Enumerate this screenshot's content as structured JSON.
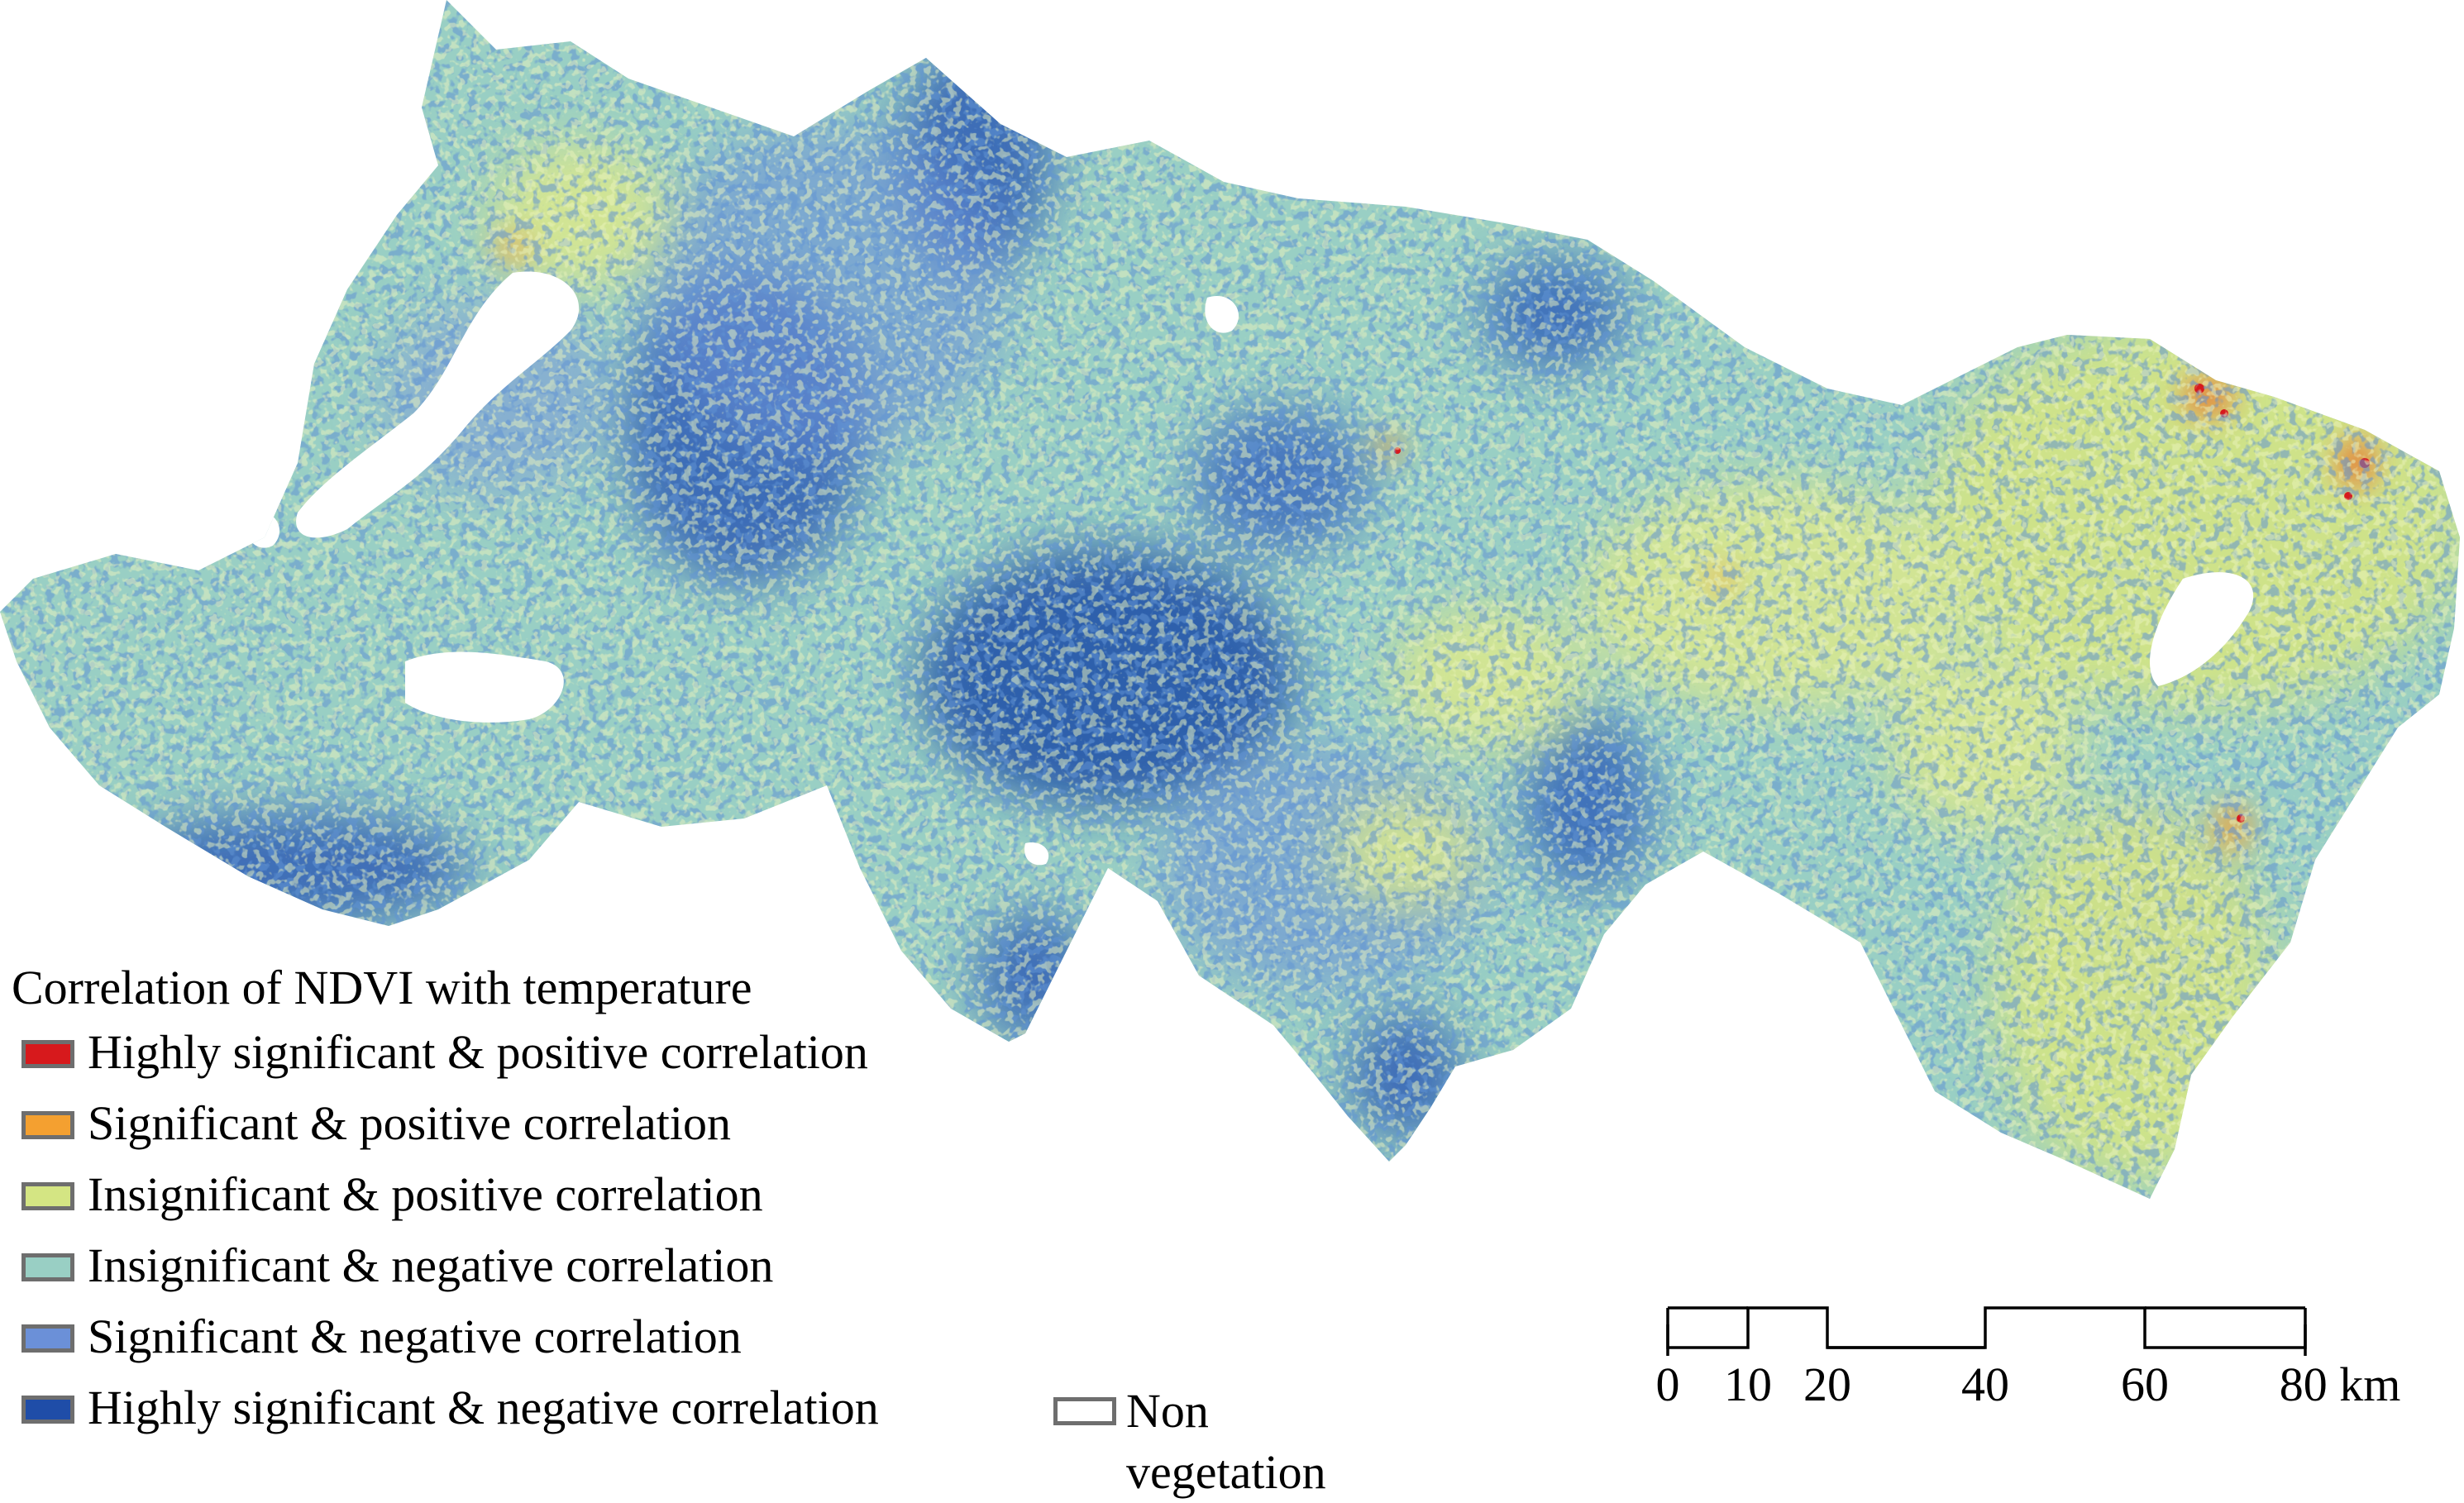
{
  "legend": {
    "title": "Correlation of NDVI with temperature",
    "items": [
      {
        "label": "Highly significant & positive correlation",
        "color": "#d7191c"
      },
      {
        "label": "Significant & positive correlation",
        "color": "#f4a030"
      },
      {
        "label": "Insignificant & positive correlation",
        "color": "#d4e583"
      },
      {
        "label": "Insignificant & negative correlation",
        "color": "#99cfc4"
      },
      {
        "label": "Significant & negative correlation",
        "color": "#6b90d8"
      },
      {
        "label": "Highly significant & negative correlation",
        "color": "#1f4da8"
      }
    ],
    "non_vegetation": {
      "label": "Non vegetation",
      "color": "#ffffff"
    }
  },
  "scale_bar": {
    "labels": [
      "0",
      "10",
      "20",
      "40",
      "60",
      "80 km"
    ]
  }
}
